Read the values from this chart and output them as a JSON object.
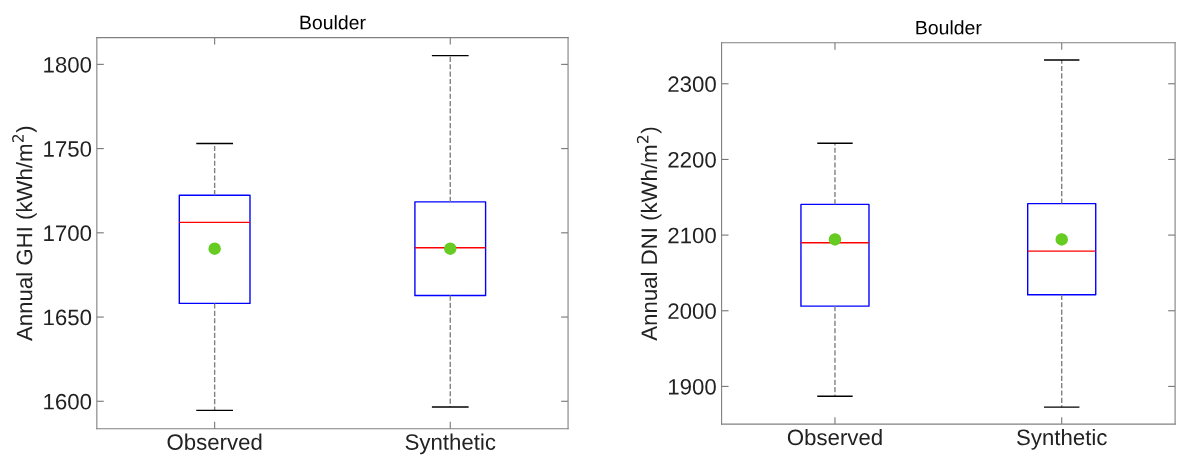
{
  "chart_data": [
    {
      "type": "box",
      "title": "Boulder",
      "ylabel": "Annual GHI (kWh/m$^{2}$)",
      "categories": [
        "Observed",
        "Synthetic"
      ],
      "ylim": [
        1583.7,
        1815.9
      ],
      "yticks": [
        1600,
        1650,
        1700,
        1750,
        1800
      ],
      "grid": false,
      "marker": "circle",
      "line_style": "dashed",
      "series": [
        {
          "color": "#0000ff",
          "boxes": [
            {
              "low": 1594.6,
              "q1": 1658.1,
              "median": 1706.2,
              "q3": 1722.3,
              "high": 1753,
              "mean": 1690.6
            },
            {
              "low": 1596.6,
              "q1": 1662.8,
              "median": 1691.1,
              "q3": 1718.4,
              "high": 1805.2,
              "mean": 1690.6
            }
          ]
        }
      ]
    },
    {
      "type": "box",
      "title": "Boulder",
      "ylabel": "Annual DNI (kWh/m$^{2}$)",
      "categories": [
        "Observed",
        "Synthetic"
      ],
      "ylim": [
        1850.2,
        2354.3
      ],
      "yticks": [
        1900,
        2000,
        2100,
        2200,
        2300
      ],
      "grid": false,
      "marker": "circle",
      "line_style": "dashed",
      "series": [
        {
          "color": "#0000ff",
          "boxes": [
            {
              "low": 1887.0,
              "q1": 2006.1,
              "median": 2089.8,
              "q3": 2140.6,
              "high": 2221.3,
              "mean": 2094.3
            },
            {
              "low": 1872.6,
              "q1": 2021.1,
              "median": 2078.8,
              "q3": 2141.6,
              "high": 2331.4,
              "mean": 2094.3
            }
          ]
        }
      ]
    }
  ]
}
